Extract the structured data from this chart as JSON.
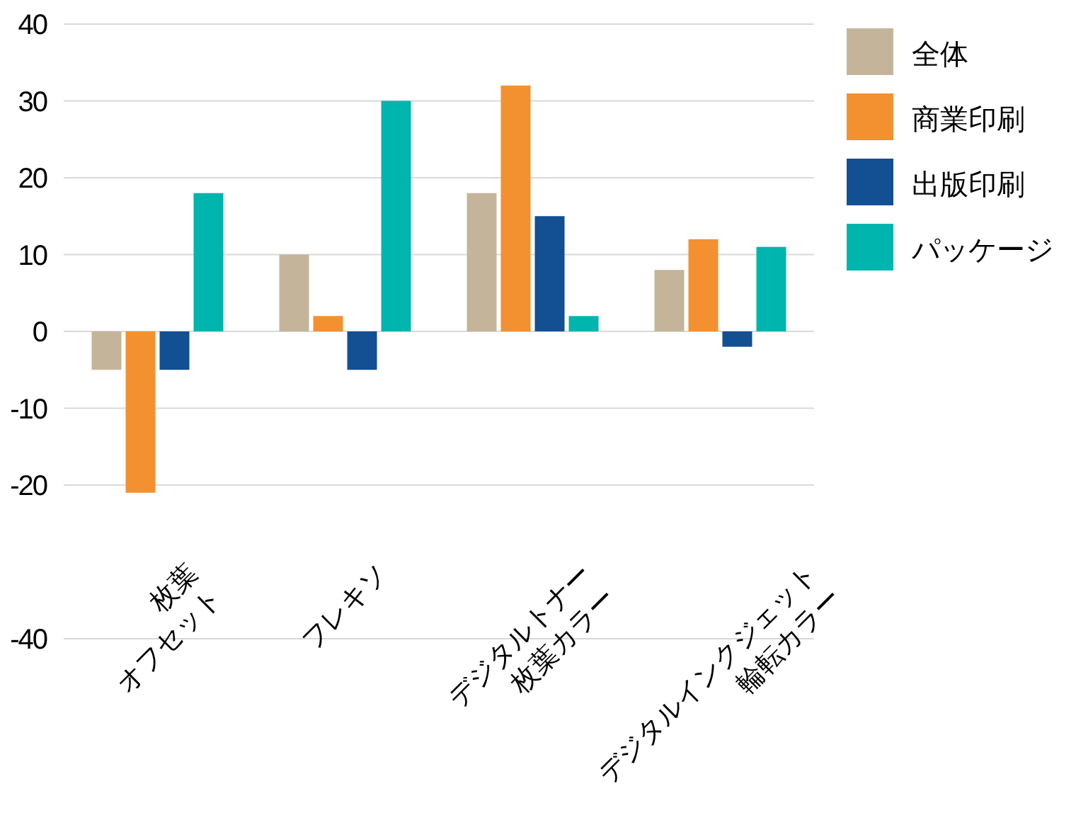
{
  "chart_data": {
    "type": "bar",
    "categories": [
      "枚葉\nオフセット",
      "フレキソ",
      "デジタルトナー\n枚葉カラー",
      "デジタルインクジェット\n輪転カラー"
    ],
    "series": [
      {
        "name": "全体",
        "color": "#c4b59a",
        "values": [
          -5,
          10,
          18,
          8
        ]
      },
      {
        "name": "商業印刷",
        "color": "#f39130",
        "values": [
          -21,
          2,
          32,
          12
        ]
      },
      {
        "name": "出版印刷",
        "color": "#134f93",
        "values": [
          -5,
          -5,
          15,
          -2
        ]
      },
      {
        "name": "パッケージ",
        "color": "#00b5ad",
        "values": [
          18,
          30,
          2,
          11
        ]
      }
    ],
    "ylim": [
      -40,
      40
    ],
    "yticks": [
      -40,
      -20,
      -10,
      0,
      10,
      20,
      30,
      40
    ],
    "grid": "y",
    "legend": "top right"
  }
}
